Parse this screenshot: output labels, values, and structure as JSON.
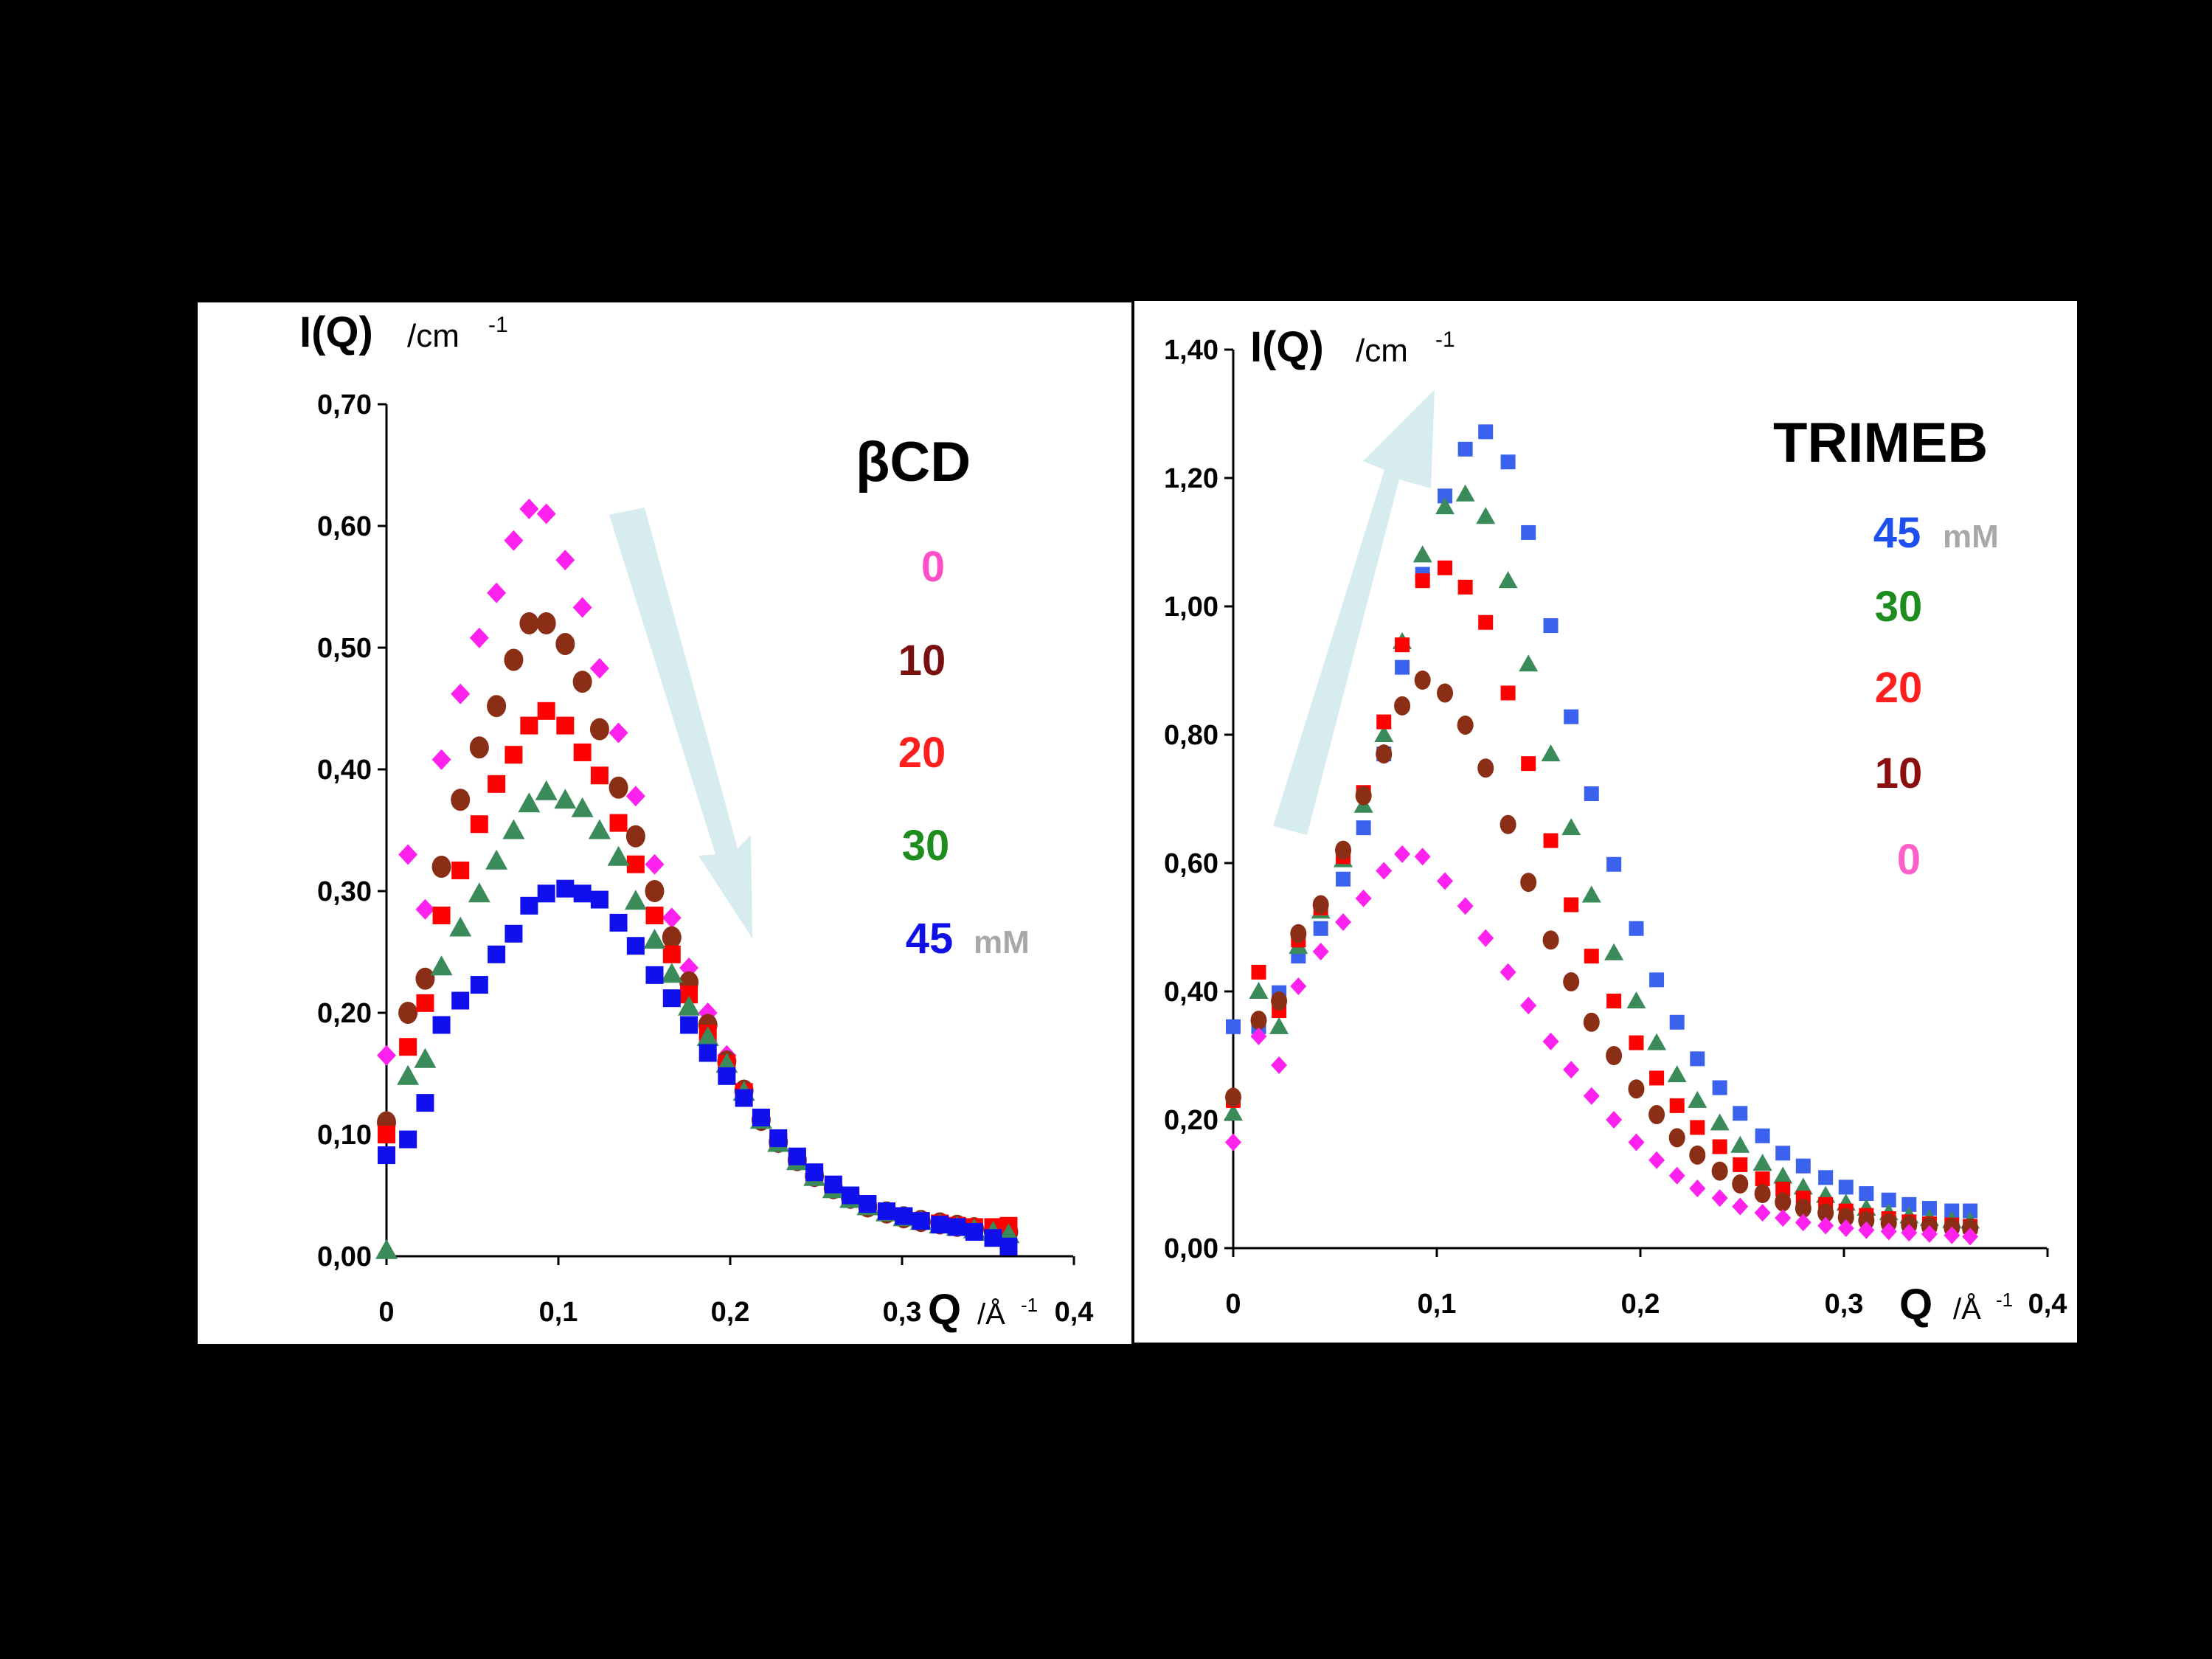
{
  "chart_data": [
    {
      "type": "scatter",
      "title": "βCD",
      "ylabel_main": "I(Q)",
      "ylabel_unit": "/cm",
      "ylabel_sup": "-1",
      "xlabel_main": "Q",
      "xlabel_unit": "/Å",
      "xlabel_sup": "-1",
      "xlim": [
        0,
        0.4
      ],
      "ylim": [
        0,
        0.7
      ],
      "xticks": [
        "0",
        "0,1",
        "0,2",
        "0,3",
        "0,4"
      ],
      "yticks": [
        "0,00",
        "0,10",
        "0,20",
        "0,30",
        "0,40",
        "0,50",
        "0,60",
        "0,70"
      ],
      "arrow": {
        "direction": "down",
        "color": "#d6ecee"
      },
      "legend": {
        "items": [
          {
            "label": "0",
            "color": "#ff4fc8"
          },
          {
            "label": "10",
            "color": "#7a0f0f"
          },
          {
            "label": "20",
            "color": "#ff1f1f"
          },
          {
            "label": "30",
            "color": "#1e8c1e"
          },
          {
            "label": "45",
            "color": "#1010e6"
          }
        ],
        "unit": "mM",
        "unit_color": "#a8a8a8"
      },
      "series": [
        {
          "name": "0",
          "marker": "diamond",
          "color": "#ff22ee",
          "x": [
            0,
            0.0125,
            0.0225,
            0.032,
            0.043,
            0.054,
            0.064,
            0.074,
            0.083,
            0.093,
            0.104,
            0.114,
            0.124,
            0.135,
            0.145,
            0.156,
            0.166,
            0.176,
            0.187,
            0.198,
            0.208,
            0.218,
            0.228,
            0.239,
            0.249,
            0.26,
            0.27,
            0.28,
            0.291,
            0.301,
            0.311,
            0.322,
            0.332,
            0.342,
            0.353,
            0.362
          ],
          "y": [
            0.165,
            0.33,
            0.285,
            0.408,
            0.462,
            0.508,
            0.545,
            0.588,
            0.614,
            0.61,
            0.572,
            0.533,
            0.483,
            0.43,
            0.378,
            0.322,
            0.278,
            0.237,
            0.2,
            0.165,
            0.137,
            0.113,
            0.093,
            0.078,
            0.065,
            0.055,
            0.047,
            0.04,
            0.035,
            0.031,
            0.028,
            0.026,
            0.024,
            0.022,
            0.02,
            0.018
          ]
        },
        {
          "name": "10",
          "marker": "circle",
          "color": "#8b2e16",
          "x": [
            0,
            0.0125,
            0.0225,
            0.032,
            0.043,
            0.054,
            0.064,
            0.074,
            0.083,
            0.093,
            0.104,
            0.114,
            0.124,
            0.135,
            0.145,
            0.156,
            0.166,
            0.176,
            0.187,
            0.198,
            0.208,
            0.218,
            0.228,
            0.239,
            0.249,
            0.26,
            0.27,
            0.28,
            0.291,
            0.301,
            0.311,
            0.322,
            0.332,
            0.342,
            0.353,
            0.362
          ],
          "y": [
            0.11,
            0.2,
            0.228,
            0.32,
            0.375,
            0.418,
            0.452,
            0.49,
            0.52,
            0.52,
            0.503,
            0.472,
            0.433,
            0.385,
            0.345,
            0.3,
            0.262,
            0.225,
            0.19,
            0.16,
            0.136,
            0.112,
            0.094,
            0.079,
            0.066,
            0.056,
            0.048,
            0.041,
            0.036,
            0.032,
            0.029,
            0.027,
            0.025,
            0.023,
            0.021,
            0.02
          ]
        },
        {
          "name": "20",
          "marker": "square",
          "color": "#ff0000",
          "x": [
            0,
            0.0125,
            0.0225,
            0.032,
            0.043,
            0.054,
            0.064,
            0.074,
            0.083,
            0.093,
            0.104,
            0.114,
            0.124,
            0.135,
            0.145,
            0.156,
            0.166,
            0.176,
            0.187,
            0.198,
            0.208,
            0.218,
            0.228,
            0.239,
            0.249,
            0.26,
            0.27,
            0.28,
            0.291,
            0.301,
            0.311,
            0.322,
            0.332,
            0.342,
            0.353,
            0.362
          ],
          "y": [
            0.1,
            0.172,
            0.208,
            0.28,
            0.317,
            0.355,
            0.388,
            0.412,
            0.436,
            0.448,
            0.436,
            0.414,
            0.395,
            0.356,
            0.322,
            0.28,
            0.248,
            0.215,
            0.183,
            0.158,
            0.135,
            0.113,
            0.094,
            0.079,
            0.066,
            0.056,
            0.048,
            0.041,
            0.036,
            0.032,
            0.029,
            0.027,
            0.025,
            0.024,
            0.024,
            0.025
          ]
        },
        {
          "name": "30",
          "marker": "triangle",
          "color": "#3a8a5a",
          "x": [
            0,
            0.0125,
            0.0225,
            0.032,
            0.043,
            0.054,
            0.064,
            0.074,
            0.083,
            0.093,
            0.104,
            0.114,
            0.124,
            0.135,
            0.145,
            0.156,
            0.166,
            0.176,
            0.187,
            0.198,
            0.208,
            0.218,
            0.228,
            0.239,
            0.249,
            0.26,
            0.27,
            0.28,
            0.291,
            0.301,
            0.311,
            0.322,
            0.332,
            0.342,
            0.353,
            0.362
          ],
          "y": [
            0.005,
            0.148,
            0.162,
            0.238,
            0.27,
            0.298,
            0.325,
            0.35,
            0.372,
            0.382,
            0.375,
            0.368,
            0.35,
            0.328,
            0.292,
            0.26,
            0.232,
            0.205,
            0.18,
            0.158,
            0.135,
            0.112,
            0.093,
            0.078,
            0.065,
            0.055,
            0.047,
            0.041,
            0.036,
            0.032,
            0.029,
            0.026,
            0.024,
            0.022,
            0.02,
            0.018
          ]
        },
        {
          "name": "45",
          "marker": "square",
          "color": "#1010ee",
          "x": [
            0,
            0.0125,
            0.0225,
            0.032,
            0.043,
            0.054,
            0.064,
            0.074,
            0.083,
            0.093,
            0.104,
            0.114,
            0.124,
            0.135,
            0.145,
            0.156,
            0.166,
            0.176,
            0.187,
            0.198,
            0.208,
            0.218,
            0.228,
            0.239,
            0.249,
            0.26,
            0.27,
            0.28,
            0.291,
            0.301,
            0.311,
            0.322,
            0.332,
            0.342,
            0.353,
            0.362
          ],
          "y": [
            0.083,
            0.096,
            0.126,
            0.19,
            0.21,
            0.223,
            0.248,
            0.265,
            0.288,
            0.298,
            0.302,
            0.298,
            0.293,
            0.274,
            0.255,
            0.231,
            0.212,
            0.19,
            0.167,
            0.148,
            0.13,
            0.114,
            0.097,
            0.082,
            0.069,
            0.059,
            0.05,
            0.043,
            0.037,
            0.033,
            0.029,
            0.026,
            0.024,
            0.02,
            0.015,
            0.008
          ]
        }
      ]
    },
    {
      "type": "scatter",
      "title": "TRIMEB",
      "ylabel_main": "I(Q)",
      "ylabel_unit": "/cm",
      "ylabel_sup": "-1",
      "xlabel_main": "Q",
      "xlabel_unit": "/Å",
      "xlabel_sup": "-1",
      "xlim": [
        0,
        0.4
      ],
      "ylim": [
        0,
        1.4
      ],
      "xticks": [
        "0",
        "0,1",
        "0,2",
        "0,3",
        "0,4"
      ],
      "yticks": [
        "0,00",
        "0,20",
        "0,40",
        "0,60",
        "0,80",
        "1,00",
        "1,20",
        "1,40"
      ],
      "arrow": {
        "direction": "up",
        "color": "#d6ecee"
      },
      "legend": {
        "items": [
          {
            "label": "45",
            "color": "#1e50f0"
          },
          {
            "label": "30",
            "color": "#1e8c1e"
          },
          {
            "label": "20",
            "color": "#ff1f1f"
          },
          {
            "label": "10",
            "color": "#8b0f0f"
          },
          {
            "label": "0",
            "color": "#ff5fc8"
          }
        ],
        "unit": "mM",
        "unit_color": "#a8a8a8"
      },
      "series": [
        {
          "name": "45",
          "marker": "square",
          "color": "#3a62ee",
          "x": [
            0,
            0.0125,
            0.0225,
            0.032,
            0.043,
            0.054,
            0.064,
            0.074,
            0.083,
            0.093,
            0.104,
            0.114,
            0.124,
            0.135,
            0.145,
            0.156,
            0.166,
            0.176,
            0.187,
            0.198,
            0.208,
            0.218,
            0.228,
            0.239,
            0.249,
            0.26,
            0.27,
            0.28,
            0.291,
            0.301,
            0.311,
            0.322,
            0.332,
            0.342,
            0.353,
            0.362
          ],
          "y": [
            0.345,
            0.345,
            0.398,
            0.455,
            0.498,
            0.575,
            0.655,
            0.77,
            0.905,
            1.05,
            1.172,
            1.245,
            1.272,
            1.225,
            1.115,
            0.97,
            0.828,
            0.708,
            0.598,
            0.498,
            0.418,
            0.352,
            0.295,
            0.25,
            0.21,
            0.175,
            0.148,
            0.128,
            0.11,
            0.095,
            0.085,
            0.075,
            0.068,
            0.062,
            0.058,
            0.058
          ]
        },
        {
          "name": "30",
          "marker": "triangle",
          "color": "#3a8a5a",
          "x": [
            0,
            0.0125,
            0.0225,
            0.032,
            0.043,
            0.054,
            0.064,
            0.074,
            0.083,
            0.093,
            0.104,
            0.114,
            0.124,
            0.135,
            0.145,
            0.156,
            0.166,
            0.176,
            0.187,
            0.198,
            0.208,
            0.218,
            0.228,
            0.239,
            0.249,
            0.26,
            0.27,
            0.28,
            0.291,
            0.301,
            0.311,
            0.322,
            0.332,
            0.342,
            0.353,
            0.362
          ],
          "y": [
            0.21,
            0.4,
            0.345,
            0.47,
            0.525,
            0.605,
            0.69,
            0.8,
            0.945,
            1.08,
            1.155,
            1.175,
            1.14,
            1.04,
            0.91,
            0.77,
            0.655,
            0.55,
            0.46,
            0.385,
            0.32,
            0.27,
            0.23,
            0.195,
            0.16,
            0.132,
            0.112,
            0.095,
            0.082,
            0.07,
            0.062,
            0.055,
            0.05,
            0.046,
            0.043,
            0.042
          ]
        },
        {
          "name": "20",
          "marker": "square",
          "color": "#ff0000",
          "x": [
            0,
            0.0125,
            0.0225,
            0.032,
            0.043,
            0.054,
            0.064,
            0.074,
            0.083,
            0.093,
            0.104,
            0.114,
            0.124,
            0.135,
            0.145,
            0.156,
            0.166,
            0.176,
            0.187,
            0.198,
            0.208,
            0.218,
            0.228,
            0.239,
            0.249,
            0.26,
            0.27,
            0.28,
            0.291,
            0.301,
            0.311,
            0.322,
            0.332,
            0.342,
            0.353,
            0.362
          ],
          "y": [
            0.23,
            0.43,
            0.37,
            0.48,
            0.53,
            0.61,
            0.71,
            0.82,
            0.94,
            1.04,
            1.06,
            1.03,
            0.975,
            0.865,
            0.755,
            0.635,
            0.535,
            0.455,
            0.385,
            0.32,
            0.265,
            0.222,
            0.188,
            0.158,
            0.13,
            0.108,
            0.092,
            0.078,
            0.068,
            0.058,
            0.051,
            0.046,
            0.041,
            0.038,
            0.036,
            0.034
          ]
        },
        {
          "name": "10",
          "marker": "circle",
          "color": "#8b2e16",
          "x": [
            0,
            0.0125,
            0.0225,
            0.032,
            0.043,
            0.054,
            0.064,
            0.074,
            0.083,
            0.093,
            0.104,
            0.114,
            0.124,
            0.135,
            0.145,
            0.156,
            0.166,
            0.176,
            0.187,
            0.198,
            0.208,
            0.218,
            0.228,
            0.239,
            0.249,
            0.26,
            0.27,
            0.28,
            0.291,
            0.301,
            0.311,
            0.322,
            0.332,
            0.342,
            0.353,
            0.362
          ],
          "y": [
            0.235,
            0.355,
            0.385,
            0.49,
            0.535,
            0.62,
            0.705,
            0.77,
            0.845,
            0.885,
            0.865,
            0.815,
            0.748,
            0.66,
            0.57,
            0.48,
            0.415,
            0.352,
            0.3,
            0.248,
            0.208,
            0.172,
            0.145,
            0.12,
            0.1,
            0.085,
            0.072,
            0.062,
            0.055,
            0.048,
            0.043,
            0.039,
            0.036,
            0.034,
            0.032,
            0.031
          ]
        },
        {
          "name": "0",
          "marker": "diamond",
          "color": "#ff22ee",
          "x": [
            0,
            0.0125,
            0.0225,
            0.032,
            0.043,
            0.054,
            0.064,
            0.074,
            0.083,
            0.093,
            0.104,
            0.114,
            0.124,
            0.135,
            0.145,
            0.156,
            0.166,
            0.176,
            0.187,
            0.198,
            0.208,
            0.218,
            0.228,
            0.239,
            0.249,
            0.26,
            0.27,
            0.28,
            0.291,
            0.301,
            0.311,
            0.322,
            0.332,
            0.342,
            0.353,
            0.362
          ],
          "y": [
            0.165,
            0.33,
            0.285,
            0.408,
            0.462,
            0.508,
            0.545,
            0.588,
            0.614,
            0.61,
            0.572,
            0.533,
            0.483,
            0.43,
            0.378,
            0.322,
            0.278,
            0.237,
            0.2,
            0.165,
            0.137,
            0.113,
            0.093,
            0.078,
            0.065,
            0.055,
            0.047,
            0.04,
            0.035,
            0.031,
            0.028,
            0.026,
            0.024,
            0.022,
            0.02,
            0.018
          ]
        }
      ]
    }
  ]
}
